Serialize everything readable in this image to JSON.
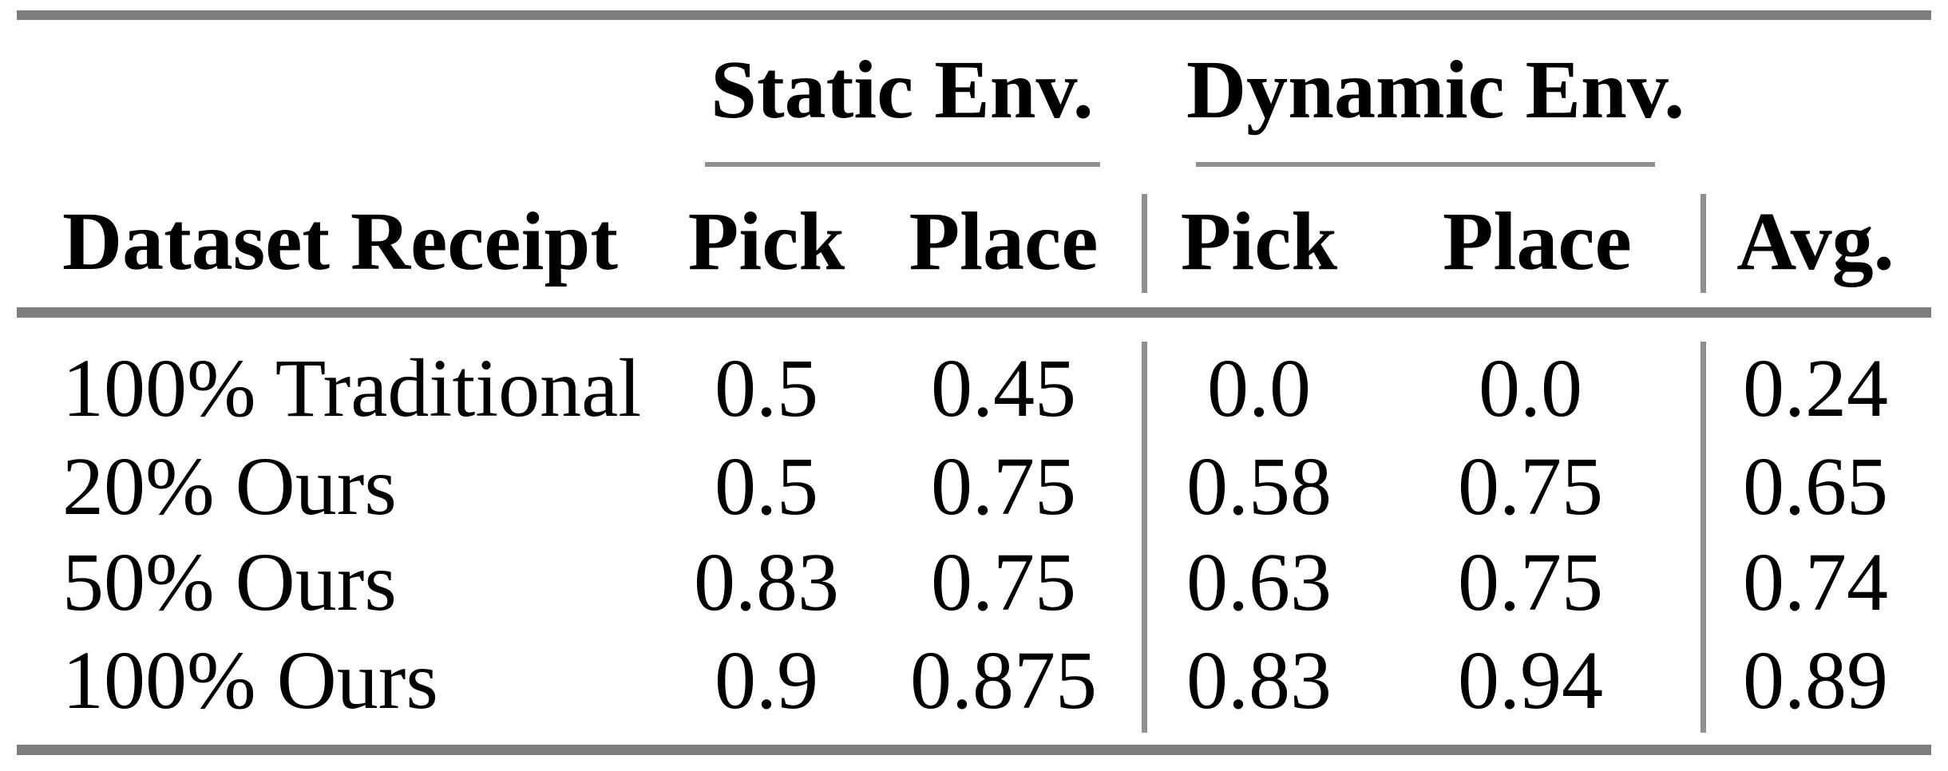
{
  "page": {
    "background": "#ffffff"
  },
  "table": {
    "group_headers": {
      "static": "Static Env.",
      "dynamic": "Dynamic Env."
    },
    "column_headers": {
      "row_label": "Dataset Receipt",
      "static_pick": "Pick",
      "static_place": "Place",
      "dynamic_pick": "Pick",
      "dynamic_place": "Place",
      "avg": "Avg."
    },
    "rows": [
      {
        "label": "100% Traditional",
        "static_pick": "0.5",
        "static_place": "0.45",
        "dynamic_pick": "0.0",
        "dynamic_place": "0.0",
        "avg": "0.24"
      },
      {
        "label": "20% Ours",
        "static_pick": "0.5",
        "static_place": "0.75",
        "dynamic_pick": "0.58",
        "dynamic_place": "0.75",
        "avg": "0.65"
      },
      {
        "label": "50% Ours",
        "static_pick": "0.83",
        "static_place": "0.75",
        "dynamic_pick": "0.63",
        "dynamic_place": "0.75",
        "avg": "0.74"
      },
      {
        "label": "100% Ours",
        "static_pick": "0.9",
        "static_place": "0.875",
        "dynamic_pick": "0.83",
        "dynamic_place": "0.94",
        "avg": "0.89"
      }
    ],
    "colors": {
      "rule_thick": "#7e7e7e",
      "rule_thin": "#8f8f8f",
      "text": "#000000",
      "background": "#ffffff"
    }
  },
  "chart_data": {
    "type": "table",
    "title": "",
    "column_groups": [
      {
        "label": "Static Env.",
        "columns": [
          "Pick",
          "Place"
        ]
      },
      {
        "label": "Dynamic Env.",
        "columns": [
          "Pick",
          "Place"
        ]
      }
    ],
    "columns": [
      "Dataset Receipt",
      "Static Env. Pick",
      "Static Env. Place",
      "Dynamic Env. Pick",
      "Dynamic Env. Place",
      "Avg."
    ],
    "rows": [
      [
        "100% Traditional",
        0.5,
        0.45,
        0.0,
        0.0,
        0.24
      ],
      [
        "20% Ours",
        0.5,
        0.75,
        0.58,
        0.75,
        0.65
      ],
      [
        "50% Ours",
        0.83,
        0.75,
        0.63,
        0.75,
        0.74
      ],
      [
        "100% Ours",
        0.9,
        0.875,
        0.83,
        0.94,
        0.89
      ]
    ]
  }
}
